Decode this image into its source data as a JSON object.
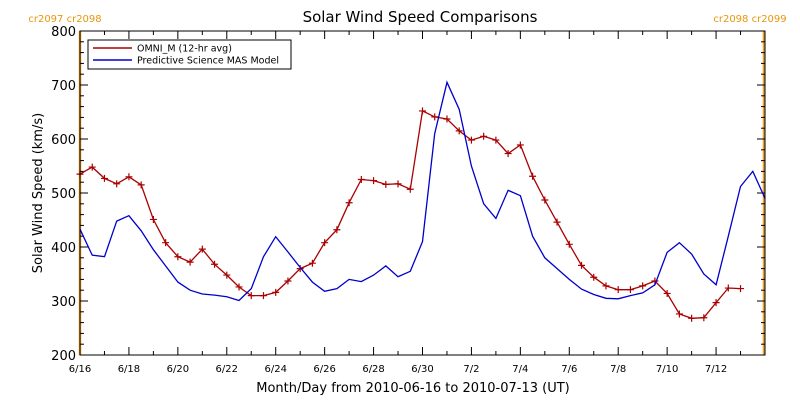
{
  "chart_data": {
    "type": "line",
    "title": "Solar Wind Speed Comparisons",
    "xlabel": "Month/Day from 2010-06-16 to 2010-07-13 (UT)",
    "ylabel": "Solar Wind Speed (km/s)",
    "ylim": [
      200,
      800
    ],
    "yticks": [
      200,
      300,
      400,
      500,
      600,
      700,
      800
    ],
    "xlim": [
      "2010-06-16T00:00",
      "2010-07-14T00:00"
    ],
    "xticks": [
      {
        "date": "2010-06-16",
        "label": "6/16"
      },
      {
        "date": "2010-06-18",
        "label": "6/18"
      },
      {
        "date": "2010-06-20",
        "label": "6/20"
      },
      {
        "date": "2010-06-22",
        "label": "6/22"
      },
      {
        "date": "2010-06-24",
        "label": "6/24"
      },
      {
        "date": "2010-06-26",
        "label": "6/26"
      },
      {
        "date": "2010-06-28",
        "label": "6/28"
      },
      {
        "date": "2010-06-30",
        "label": "6/30"
      },
      {
        "date": "2010-07-02",
        "label": "7/2"
      },
      {
        "date": "2010-07-04",
        "label": "7/4"
      },
      {
        "date": "2010-07-06",
        "label": "7/6"
      },
      {
        "date": "2010-07-08",
        "label": "7/8"
      },
      {
        "date": "2010-07-10",
        "label": "7/10"
      },
      {
        "date": "2010-07-12",
        "label": "7/12"
      }
    ],
    "legend_position": "top-left",
    "carrington_markers": [
      {
        "date": "2010-06-16T00:00",
        "label": "cr2097 cr2098",
        "side": "left"
      },
      {
        "date": "2010-07-13T23:00",
        "label": "cr2098 cr2099",
        "side": "right"
      }
    ],
    "series": [
      {
        "name": "OMNI_M (12-hr avg)",
        "color": "#aa0000",
        "marker": "plus",
        "points": [
          [
            "2010-06-16T00:00",
            535
          ],
          [
            "2010-06-16T12:00",
            548
          ],
          [
            "2010-06-17T00:00",
            527
          ],
          [
            "2010-06-17T12:00",
            517
          ],
          [
            "2010-06-18T00:00",
            530
          ],
          [
            "2010-06-18T12:00",
            515
          ],
          [
            "2010-06-19T00:00",
            451
          ],
          [
            "2010-06-19T12:00",
            408
          ],
          [
            "2010-06-20T00:00",
            382
          ],
          [
            "2010-06-20T12:00",
            372
          ],
          [
            "2010-06-21T00:00",
            396
          ],
          [
            "2010-06-21T12:00",
            368
          ],
          [
            "2010-06-22T00:00",
            348
          ],
          [
            "2010-06-22T12:00",
            326
          ],
          [
            "2010-06-23T00:00",
            310
          ],
          [
            "2010-06-23T12:00",
            310
          ],
          [
            "2010-06-24T00:00",
            316
          ],
          [
            "2010-06-24T12:00",
            337
          ],
          [
            "2010-06-25T00:00",
            360
          ],
          [
            "2010-06-25T12:00",
            370
          ],
          [
            "2010-06-26T00:00",
            408
          ],
          [
            "2010-06-26T12:00",
            432
          ],
          [
            "2010-06-27T00:00",
            482
          ],
          [
            "2010-06-27T12:00",
            525
          ],
          [
            "2010-06-28T00:00",
            523
          ],
          [
            "2010-06-28T12:00",
            516
          ],
          [
            "2010-06-29T00:00",
            517
          ],
          [
            "2010-06-29T12:00",
            507
          ],
          [
            "2010-06-30T00:00",
            652
          ],
          [
            "2010-06-30T12:00",
            641
          ],
          [
            "2010-07-01T00:00",
            637
          ],
          [
            "2010-07-01T12:00",
            615
          ],
          [
            "2010-07-02T00:00",
            598
          ],
          [
            "2010-07-02T12:00",
            605
          ],
          [
            "2010-07-03T00:00",
            598
          ],
          [
            "2010-07-03T12:00",
            573
          ],
          [
            "2010-07-04T00:00",
            589
          ],
          [
            "2010-07-04T12:00",
            531
          ],
          [
            "2010-07-05T00:00",
            487
          ],
          [
            "2010-07-05T12:00",
            446
          ],
          [
            "2010-07-06T00:00",
            405
          ],
          [
            "2010-07-06T12:00",
            366
          ],
          [
            "2010-07-07T00:00",
            344
          ],
          [
            "2010-07-07T12:00",
            328
          ],
          [
            "2010-07-08T00:00",
            321
          ],
          [
            "2010-07-08T12:00",
            321
          ],
          [
            "2010-07-09T00:00",
            328
          ],
          [
            "2010-07-09T12:00",
            337
          ],
          [
            "2010-07-10T00:00",
            314
          ],
          [
            "2010-07-10T12:00",
            276
          ],
          [
            "2010-07-11T00:00",
            268
          ],
          [
            "2010-07-11T12:00",
            269
          ],
          [
            "2010-07-12T00:00",
            297
          ],
          [
            "2010-07-12T12:00",
            324
          ],
          [
            "2010-07-13T00:00",
            323
          ]
        ]
      },
      {
        "name": "Predictive Science MAS Model",
        "color": "#0000cc",
        "marker": "none",
        "points": [
          [
            "2010-06-16T00:00",
            433
          ],
          [
            "2010-06-16T12:00",
            385
          ],
          [
            "2010-06-17T00:00",
            382
          ],
          [
            "2010-06-17T12:00",
            448
          ],
          [
            "2010-06-18T00:00",
            458
          ],
          [
            "2010-06-18T12:00",
            430
          ],
          [
            "2010-06-19T00:00",
            395
          ],
          [
            "2010-06-19T12:00",
            365
          ],
          [
            "2010-06-20T00:00",
            335
          ],
          [
            "2010-06-20T12:00",
            320
          ],
          [
            "2010-06-21T00:00",
            313
          ],
          [
            "2010-06-21T12:00",
            311
          ],
          [
            "2010-06-22T00:00",
            308
          ],
          [
            "2010-06-22T12:00",
            301
          ],
          [
            "2010-06-23T00:00",
            323
          ],
          [
            "2010-06-23T12:00",
            382
          ],
          [
            "2010-06-24T00:00",
            419
          ],
          [
            "2010-06-24T12:00",
            391
          ],
          [
            "2010-06-25T00:00",
            362
          ],
          [
            "2010-06-25T12:00",
            335
          ],
          [
            "2010-06-26T00:00",
            318
          ],
          [
            "2010-06-26T12:00",
            323
          ],
          [
            "2010-06-27T00:00",
            340
          ],
          [
            "2010-06-27T12:00",
            336
          ],
          [
            "2010-06-28T00:00",
            348
          ],
          [
            "2010-06-28T12:00",
            365
          ],
          [
            "2010-06-29T00:00",
            345
          ],
          [
            "2010-06-29T12:00",
            355
          ],
          [
            "2010-06-30T00:00",
            410
          ],
          [
            "2010-06-30T12:00",
            610
          ],
          [
            "2010-07-01T00:00",
            705
          ],
          [
            "2010-07-01T12:00",
            655
          ],
          [
            "2010-07-02T00:00",
            550
          ],
          [
            "2010-07-02T12:00",
            480
          ],
          [
            "2010-07-03T00:00",
            453
          ],
          [
            "2010-07-03T12:00",
            505
          ],
          [
            "2010-07-04T00:00",
            495
          ],
          [
            "2010-07-04T12:00",
            420
          ],
          [
            "2010-07-05T00:00",
            380
          ],
          [
            "2010-07-05T12:00",
            360
          ],
          [
            "2010-07-06T00:00",
            340
          ],
          [
            "2010-07-06T12:00",
            322
          ],
          [
            "2010-07-07T00:00",
            312
          ],
          [
            "2010-07-07T12:00",
            305
          ],
          [
            "2010-07-08T00:00",
            304
          ],
          [
            "2010-07-08T12:00",
            310
          ],
          [
            "2010-07-09T00:00",
            315
          ],
          [
            "2010-07-09T12:00",
            330
          ],
          [
            "2010-07-10T00:00",
            390
          ],
          [
            "2010-07-10T12:00",
            408
          ],
          [
            "2010-07-11T00:00",
            387
          ],
          [
            "2010-07-11T12:00",
            350
          ],
          [
            "2010-07-12T00:00",
            330
          ],
          [
            "2010-07-12T12:00",
            420
          ],
          [
            "2010-07-13T00:00",
            512
          ],
          [
            "2010-07-13T12:00",
            540
          ],
          [
            "2010-07-14T00:00",
            490
          ]
        ]
      }
    ]
  }
}
